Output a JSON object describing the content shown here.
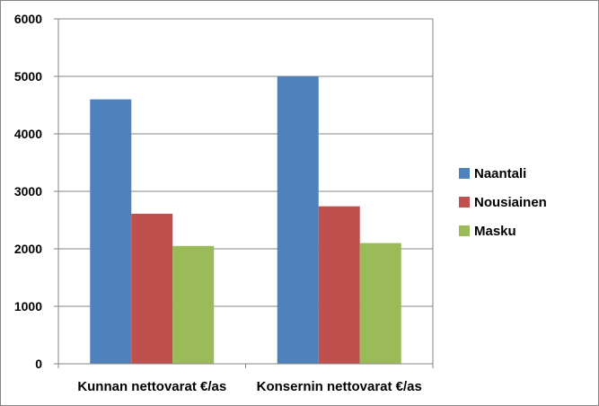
{
  "chart_data": {
    "type": "bar",
    "categories": [
      "Kunnan nettovarat €/as",
      "Konsernin nettovarat €/as"
    ],
    "series": [
      {
        "name": "Naantali",
        "values": [
          4600,
          5000
        ],
        "color": "#4F81BD"
      },
      {
        "name": "Nousiainen",
        "values": [
          2610,
          2740
        ],
        "color": "#C0504D"
      },
      {
        "name": "Masku",
        "values": [
          2050,
          2100
        ],
        "color": "#9BBB59"
      }
    ],
    "yticks": [
      "0",
      "1000",
      "2000",
      "3000",
      "4000",
      "5000",
      "6000"
    ],
    "ylim": [
      0,
      6000
    ],
    "grid": true,
    "legend_position": "right",
    "title": "",
    "xlabel": "",
    "ylabel": ""
  }
}
